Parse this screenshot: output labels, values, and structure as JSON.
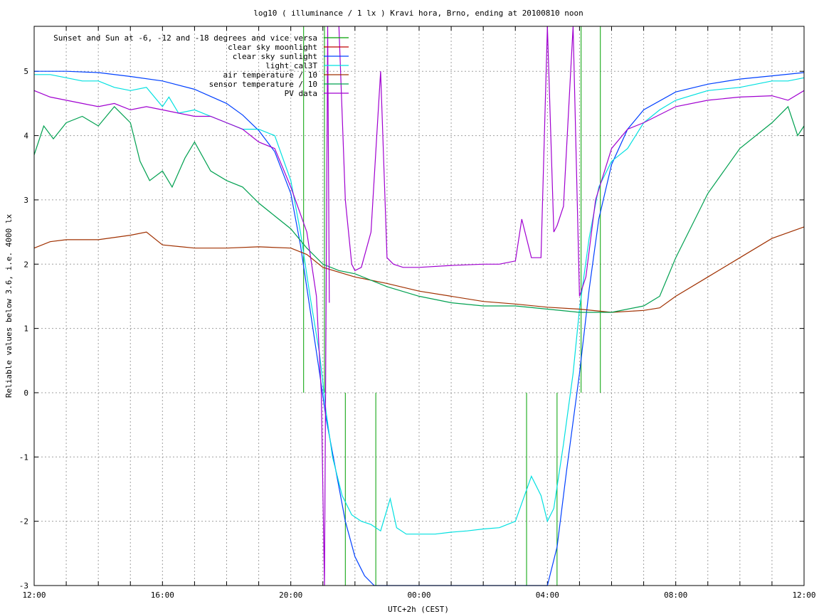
{
  "chart_data": {
    "type": "line",
    "title": "log10 ( illuminance / 1 lx ) Kravi hora, Brno, ending at 20100810 noon",
    "xlabel": "UTC+2h (CEST)",
    "ylabel": "Reliable values below 3.6, i.e. 4000 lx",
    "xlim": [
      0,
      24
    ],
    "ylim": [
      -3,
      5.7
    ],
    "grid": true,
    "legend_position": "top-right",
    "x_ticks": [
      {
        "value": 0,
        "label": "12:00"
      },
      {
        "value": 4,
        "label": "16:00"
      },
      {
        "value": 8,
        "label": "20:00"
      },
      {
        "value": 12,
        "label": "00:00"
      },
      {
        "value": 16,
        "label": "04:00"
      },
      {
        "value": 20,
        "label": "08:00"
      },
      {
        "value": 24,
        "label": "12:00"
      }
    ],
    "y_ticks": [
      -3,
      -2,
      -1,
      0,
      1,
      2,
      3,
      4,
      5
    ],
    "series": [
      {
        "name": "Sunset and Sun at -6, -12 and -18 degrees and vice versa",
        "color": "#00a000",
        "style": "vlines",
        "vlines": [
          {
            "x": 8.4,
            "y_from": 0,
            "y_to": 5.7
          },
          {
            "x": 9.05,
            "y_from": 0,
            "y_to": 5.7
          },
          {
            "x": 9.7,
            "y_from": -3,
            "y_to": 0
          },
          {
            "x": 10.65,
            "y_from": -3,
            "y_to": 0
          },
          {
            "x": 15.35,
            "y_from": -3,
            "y_to": 0
          },
          {
            "x": 16.3,
            "y_from": -3,
            "y_to": 0
          },
          {
            "x": 17.05,
            "y_from": 0,
            "y_to": 5.7
          },
          {
            "x": 17.65,
            "y_from": 0,
            "y_to": 5.7
          }
        ]
      },
      {
        "name": "clear sky moonlight",
        "color": "#c00000",
        "x": [],
        "values": []
      },
      {
        "name": "clear sky sunlight",
        "color": "#0040ff",
        "x": [
          0,
          1,
          2,
          3,
          4,
          5,
          6,
          6.5,
          7,
          7.5,
          8,
          8.3,
          8.6,
          8.9,
          9.1,
          9.4,
          9.7,
          10,
          10.3,
          10.6,
          10.9,
          11,
          15.8,
          16,
          16.3,
          16.6,
          17,
          17.3,
          17.6,
          18,
          18.5,
          19,
          20,
          21,
          22,
          23,
          24
        ],
        "values": [
          5.0,
          5.0,
          4.98,
          4.92,
          4.85,
          4.72,
          4.5,
          4.32,
          4.08,
          3.75,
          3.1,
          2.3,
          1.3,
          0.3,
          -0.4,
          -1.2,
          -2.0,
          -2.55,
          -2.85,
          -3.1,
          -3.35,
          -3.4,
          -3.4,
          -3.1,
          -2.4,
          -1.2,
          0.3,
          1.6,
          2.7,
          3.55,
          4.1,
          4.4,
          4.68,
          4.8,
          4.88,
          4.93,
          4.98
        ]
      },
      {
        "name": "light_cal3T",
        "color": "#00e0e0",
        "x": [
          0,
          0.5,
          1,
          1.5,
          2,
          2.5,
          3,
          3.5,
          4,
          4.2,
          4.5,
          5,
          5.5,
          6,
          6.5,
          7,
          7.5,
          8,
          8.3,
          8.6,
          8.9,
          9.1,
          9.3,
          9.6,
          9.9,
          10.2,
          10.5,
          10.8,
          11.1,
          11.3,
          11.6,
          12,
          12.5,
          13,
          13.5,
          14,
          14.5,
          15,
          15.5,
          15.8,
          16,
          16.2,
          16.5,
          16.8,
          17,
          17.3,
          17.6,
          18,
          18.5,
          19,
          19.5,
          20,
          21,
          22,
          23,
          23.5,
          24
        ],
        "values": [
          4.95,
          4.95,
          4.9,
          4.85,
          4.85,
          4.75,
          4.7,
          4.75,
          4.45,
          4.6,
          4.35,
          4.4,
          4.3,
          4.2,
          4.1,
          4.1,
          4.0,
          3.3,
          2.5,
          1.5,
          0.6,
          -0.3,
          -1.0,
          -1.6,
          -1.9,
          -2.0,
          -2.05,
          -2.15,
          -1.65,
          -2.1,
          -2.2,
          -2.2,
          -2.2,
          -2.17,
          -2.15,
          -2.12,
          -2.1,
          -2.0,
          -1.3,
          -1.6,
          -2.0,
          -1.8,
          -0.8,
          0.3,
          1.3,
          2.4,
          3.2,
          3.6,
          3.8,
          4.2,
          4.4,
          4.55,
          4.7,
          4.75,
          4.85,
          4.85,
          4.9
        ]
      },
      {
        "name": "air temperature / 10",
        "color": "#a03000",
        "x": [
          0,
          0.5,
          1,
          2,
          3,
          3.5,
          4,
          5,
          6,
          7,
          8,
          8.5,
          9,
          10,
          11,
          12,
          13,
          14,
          15,
          16,
          17,
          18,
          19,
          19.5,
          20,
          21,
          22,
          23,
          24
        ],
        "values": [
          2.25,
          2.35,
          2.38,
          2.38,
          2.45,
          2.5,
          2.3,
          2.25,
          2.25,
          2.27,
          2.25,
          2.15,
          1.95,
          1.8,
          1.7,
          1.58,
          1.5,
          1.42,
          1.38,
          1.33,
          1.3,
          1.25,
          1.28,
          1.32,
          1.5,
          1.8,
          2.1,
          2.4,
          2.58
        ]
      },
      {
        "name": "sensor temperature / 10",
        "color": "#00a050",
        "x": [
          0,
          0.3,
          0.6,
          1,
          1.5,
          2,
          2.5,
          3,
          3.3,
          3.6,
          4,
          4.3,
          4.7,
          5,
          5.5,
          6,
          6.5,
          7,
          7.5,
          8,
          8.5,
          9,
          9.5,
          10,
          11,
          12,
          13,
          14,
          15,
          16,
          17,
          18,
          19,
          19.5,
          20,
          21,
          22,
          23,
          23.5,
          23.8,
          24
        ],
        "values": [
          3.7,
          4.15,
          3.95,
          4.2,
          4.3,
          4.15,
          4.45,
          4.2,
          3.6,
          3.3,
          3.45,
          3.2,
          3.65,
          3.9,
          3.45,
          3.3,
          3.2,
          2.95,
          2.75,
          2.55,
          2.25,
          2.0,
          1.9,
          1.85,
          1.65,
          1.5,
          1.4,
          1.35,
          1.35,
          1.3,
          1.25,
          1.25,
          1.35,
          1.5,
          2.1,
          3.1,
          3.8,
          4.2,
          4.45,
          4.0,
          4.15
        ]
      },
      {
        "name": "PV data",
        "color": "#a000d0",
        "x": [
          0,
          0.5,
          1,
          1.5,
          2,
          2.5,
          3,
          3.5,
          4,
          4.5,
          5,
          5.5,
          6,
          6.5,
          7,
          7.5,
          8,
          8.5,
          8.8,
          8.95,
          9.05,
          9.15,
          9.2
        ],
        "values": [
          4.7,
          4.6,
          4.55,
          4.5,
          4.45,
          4.5,
          4.4,
          4.45,
          4.4,
          4.35,
          4.3,
          4.3,
          4.2,
          4.1,
          3.9,
          3.8,
          3.2,
          2.5,
          1.5,
          0.0,
          -3.0,
          5.7,
          1.4
        ],
        "x2": [
          9.5,
          9.7,
          9.9,
          10,
          10.2,
          10.5,
          10.8,
          11.0,
          11.2,
          11.5,
          12,
          13,
          14,
          14.5,
          15,
          15.2,
          15.5,
          15.8,
          16,
          16.2,
          16.3,
          16.5,
          16.8,
          17.0,
          17.2,
          17.5,
          18,
          18.5,
          19,
          20,
          21,
          22,
          23,
          23.5,
          24
        ],
        "values2": [
          5.7,
          3.0,
          2.0,
          1.9,
          1.95,
          2.5,
          5.0,
          2.1,
          2.0,
          1.95,
          1.95,
          1.98,
          2.0,
          2.0,
          2.05,
          2.7,
          2.1,
          2.1,
          5.7,
          2.5,
          2.6,
          2.9,
          5.7,
          1.5,
          1.8,
          3.0,
          3.8,
          4.1,
          4.2,
          4.45,
          4.55,
          4.6,
          4.62,
          4.55,
          4.7
        ]
      }
    ]
  }
}
